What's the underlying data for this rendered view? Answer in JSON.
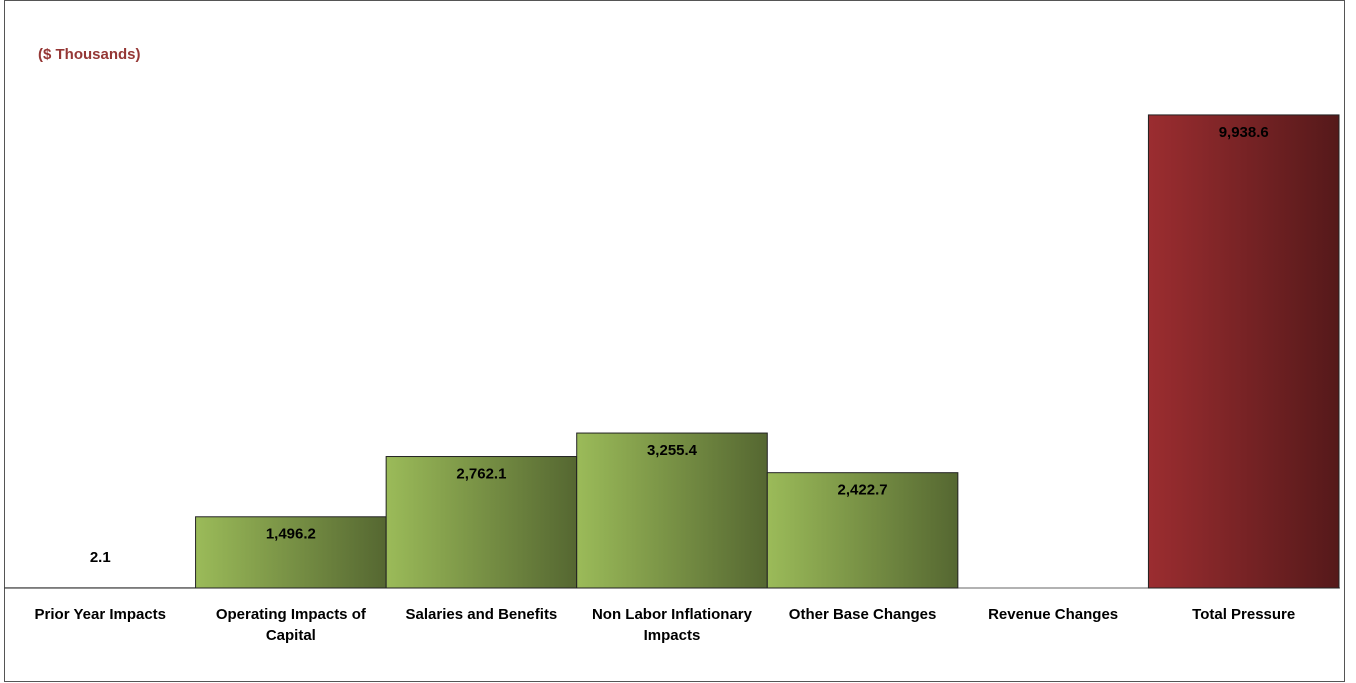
{
  "chart_data": {
    "type": "bar",
    "title": "($ Thousands)",
    "categories": [
      "Prior Year Impacts",
      "Operating Impacts of Capital",
      "Salaries and Benefits",
      "Non Labor Inflationary Impacts",
      "Other Base Changes",
      "Revenue Changes",
      "Total Pressure"
    ],
    "values": [
      2.1,
      1496.2,
      2762.1,
      3255.4,
      2422.7,
      0,
      9938.6
    ],
    "value_labels": [
      "2.1",
      "1,496.2",
      "2,762.1",
      "3,255.4",
      "2,422.7",
      null,
      "9,938.6"
    ],
    "colors": [
      "#9bbb59",
      "#9bbb59",
      "#9bbb59",
      "#9bbb59",
      "#9bbb59",
      "#9bbb59",
      "#9b2d30"
    ],
    "ylim": [
      0,
      10000
    ]
  }
}
